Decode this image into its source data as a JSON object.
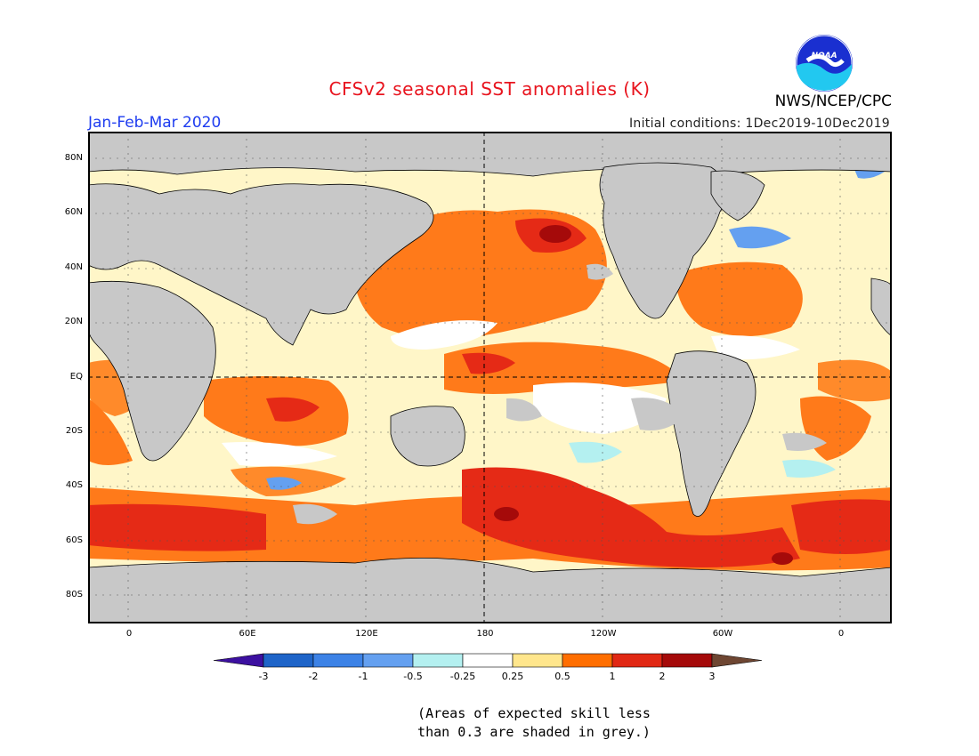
{
  "header": {
    "title": "CFSv2 seasonal SST anomalies (K)",
    "period": "Jan-Feb-Mar 2020",
    "initial_conditions": "Initial conditions: 1Dec2019-10Dec2019",
    "agency": "NWS/NCEP/CPC",
    "logo_text": "NOAA",
    "title_color": "#e8141e",
    "period_color": "#1e3cf0"
  },
  "map": {
    "lat_ticks": [
      "80N",
      "60N",
      "40N",
      "20N",
      "EQ",
      "20S",
      "40S",
      "60S",
      "80S"
    ],
    "lon_ticks": [
      "0",
      "60E",
      "120E",
      "180",
      "120W",
      "60W",
      "0"
    ],
    "land_color": "#c8c8c8",
    "ocean_base_color": "#fffad0"
  },
  "colorbar": {
    "tick_labels": [
      "-3",
      "-2",
      "-1",
      "-0.5",
      "-0.25",
      "0.25",
      "0.5",
      "1",
      "2",
      "3"
    ],
    "colors": [
      "#3c10a0",
      "#1e64c8",
      "#3c82e6",
      "#64a0f0",
      "#b4f0f0",
      "#ffffff",
      "#ffe68c",
      "#ff6e00",
      "#e12814",
      "#a50a0a",
      "#6e4632"
    ]
  },
  "note": {
    "line1": "(Areas of expected skill less",
    "line2": "than 0.3 are shaded in grey.)"
  }
}
